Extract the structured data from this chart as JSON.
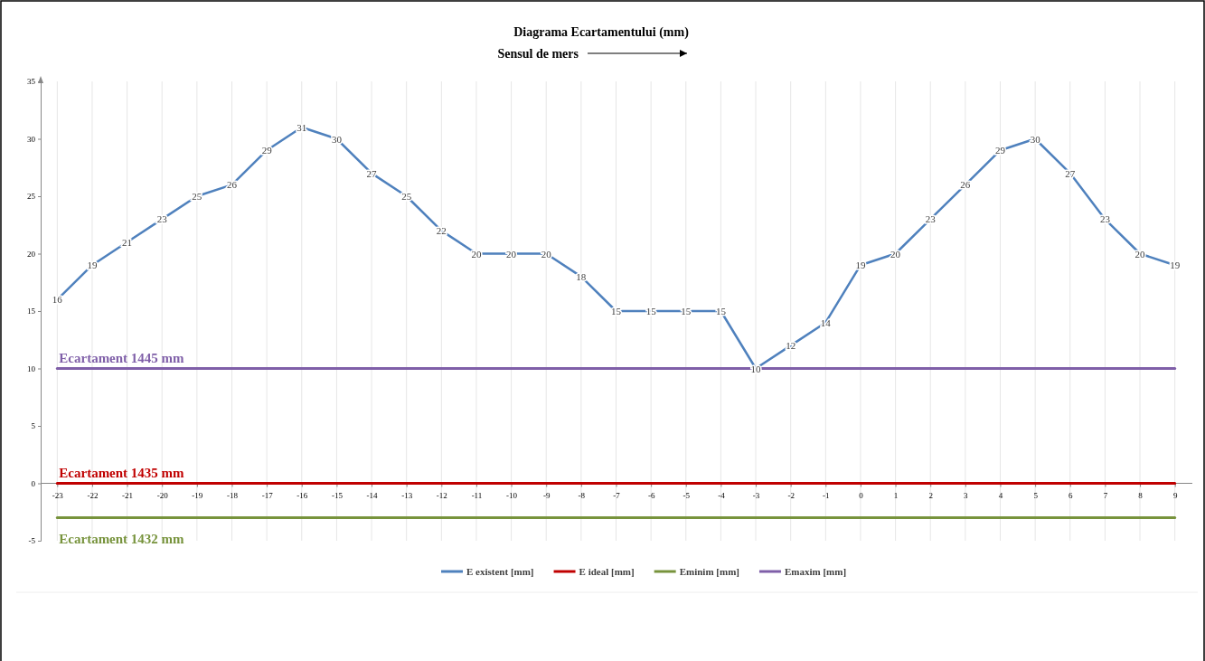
{
  "chart_data": {
    "type": "line",
    "title": "Diagrama Ecartamentului  (mm)",
    "subtitle": "Sensul de mers",
    "categories": [
      "-23",
      "-22",
      "-21",
      "-20",
      "-19",
      "-18",
      "-17",
      "-16",
      "-15",
      "-14",
      "-13",
      "-12",
      "-11",
      "-10",
      "-9",
      "-8",
      "-7",
      "-6",
      "-5",
      "-4",
      "-3",
      "-2",
      "-1",
      "0",
      "1",
      "2",
      "3",
      "4",
      "5",
      "6",
      "7",
      "8",
      "9"
    ],
    "series": [
      {
        "name": "E existent [mm]",
        "color": "#4f81bd",
        "values": [
          16,
          19,
          21,
          23,
          25,
          26,
          29,
          31,
          30,
          27,
          25,
          22,
          20,
          20,
          20,
          18,
          15,
          15,
          15,
          15,
          10,
          12,
          14,
          19,
          20,
          23,
          26,
          29,
          30,
          27,
          23,
          20,
          19
        ],
        "value_labels": [
          "16",
          "19",
          "21",
          "23",
          "25",
          "26",
          "29",
          "31",
          "30",
          "27",
          "25",
          "22",
          "20",
          "20",
          "20",
          "18",
          "15",
          "15",
          "15",
          "15",
          "10",
          "12",
          "14",
          "19",
          "20",
          "23",
          "26",
          "29",
          "30",
          "27",
          "23",
          "20",
          "19"
        ]
      },
      {
        "name": "E ideal [mm]",
        "color": "#c00000",
        "values": [
          0,
          0,
          0,
          0,
          0,
          0,
          0,
          0,
          0,
          0,
          0,
          0,
          0,
          0,
          0,
          0,
          0,
          0,
          0,
          0,
          0,
          0,
          0,
          0,
          0,
          0,
          0,
          0,
          0,
          0,
          0,
          0,
          0
        ]
      },
      {
        "name": "Eminim [mm]",
        "color": "#77933c",
        "values": [
          -3,
          -3,
          -3,
          -3,
          -3,
          -3,
          -3,
          -3,
          -3,
          -3,
          -3,
          -3,
          -3,
          -3,
          -3,
          -3,
          -3,
          -3,
          -3,
          -3,
          -3,
          -3,
          -3,
          -3,
          -3,
          -3,
          -3,
          -3,
          -3,
          -3,
          -3,
          -3,
          -3
        ]
      },
      {
        "name": "Emaxim [mm]",
        "color": "#7f5fa8",
        "values": [
          10,
          10,
          10,
          10,
          10,
          10,
          10,
          10,
          10,
          10,
          10,
          10,
          10,
          10,
          10,
          10,
          10,
          10,
          10,
          10,
          10,
          10,
          10,
          10,
          10,
          10,
          10,
          10,
          10,
          10,
          10,
          10,
          10
        ]
      }
    ],
    "annotations": [
      {
        "text": "Ecartament  1435 mm",
        "x": "-23",
        "y": 0
      },
      {
        "text": "Ecartament  1432 mm",
        "x": "-23",
        "y": -3
      },
      {
        "text": "Ecartament  1445 mm",
        "x": "-23",
        "y": 10
      }
    ],
    "ylim": [
      -5,
      35
    ],
    "yticks": [
      -5,
      0,
      5,
      10,
      15,
      20,
      25,
      30,
      35
    ],
    "grid": "x",
    "legend": "bottom",
    "marker": "none",
    "line_style": "solid"
  }
}
